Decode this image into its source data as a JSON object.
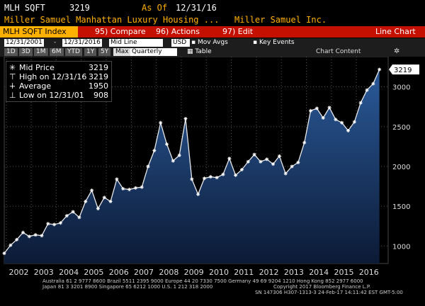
{
  "header": {
    "ticker": "MLH SQFT",
    "value": "3219",
    "as_of_label": "As Of",
    "as_of_date": "12/31/16",
    "description": "Miller Samuel Manhattan Luxury Housing ...",
    "source": "Miller Samuel Inc."
  },
  "toolbar": {
    "index_title": "MLH SQFT Index",
    "compare_key": "95)",
    "compare_label": "Compare",
    "actions_key": "96)",
    "actions_label": "Actions",
    "edit_key": "97)",
    "edit_label": "Edit",
    "chart_type": "Line Chart"
  },
  "period_bar": {
    "start_date": "12/31/2001",
    "end_date": "12/31/2016",
    "line_type": "Mid Line",
    "currency": "USD",
    "mov_avgs": "Mov Avgs",
    "key_events": "Key Events",
    "periods": [
      "1D",
      "3D",
      "1M",
      "6M",
      "YTD",
      "1Y",
      "5Y",
      "Max"
    ],
    "frequency": "Quarterly",
    "table_label": "Table",
    "chart_content": "Chart Content"
  },
  "legend": {
    "mid_label": "Mid Price",
    "mid_value": "3219",
    "high_label": "High on 12/31/16",
    "high_value": "3219",
    "avg_label": "Average",
    "avg_value": "1950",
    "low_label": "Low on 12/31/01",
    "low_value": "908"
  },
  "colors": {
    "accent": "#ffb000",
    "toolbar": "#c41000",
    "area_top": "#2a5a9a",
    "area_bottom": "#0c1a35"
  },
  "chart_data": {
    "type": "area",
    "series": [
      {
        "name": "Mid Price",
        "values": [
          908,
          1010,
          1080,
          1170,
          1120,
          1140,
          1130,
          1280,
          1270,
          1290,
          1380,
          1430,
          1360,
          1560,
          1700,
          1470,
          1610,
          1560,
          1840,
          1720,
          1710,
          1730,
          1740,
          2000,
          2200,
          2550,
          2280,
          2070,
          2140,
          2600,
          1840,
          1650,
          1850,
          1870,
          1860,
          1900,
          2100,
          1890,
          1960,
          2060,
          2150,
          2060,
          2090,
          2030,
          2130,
          1910,
          2000,
          2050,
          2300,
          2700,
          2730,
          2610,
          2740,
          2590,
          2550,
          2450,
          2560,
          2800,
          2960,
          3040,
          3219
        ]
      }
    ],
    "x_start": 2001.92,
    "x_step": 0.25,
    "year_labels": [
      "2002",
      "2003",
      "2004",
      "2005",
      "2006",
      "2007",
      "2008",
      "2009",
      "2010",
      "2011",
      "2012",
      "2013",
      "2014",
      "2015",
      "2016"
    ],
    "y_ticks": [
      1000,
      1500,
      2000,
      2500,
      3000
    ],
    "ylim": [
      780,
      3380
    ],
    "last_value_label": "3219",
    "grid": true
  },
  "footer": {
    "line1": "Australia 61 2 9777 8600 Brazil 5511 2395 9000 Europe 44 20 7330 7500 Germany 49 69 9204 1210 Hong Kong 852 2977 6000",
    "line2": "Japan 81 3 3201 8900        Singapore 65 6212 1000        U.S. 1 212 318 2000",
    "line3": "Copyright 2017 Bloomberg Finance L.P.",
    "line4": "SN 147306 H307-1313-3 24-Feb-17 14:11:42 EST  GMT-5:00"
  }
}
